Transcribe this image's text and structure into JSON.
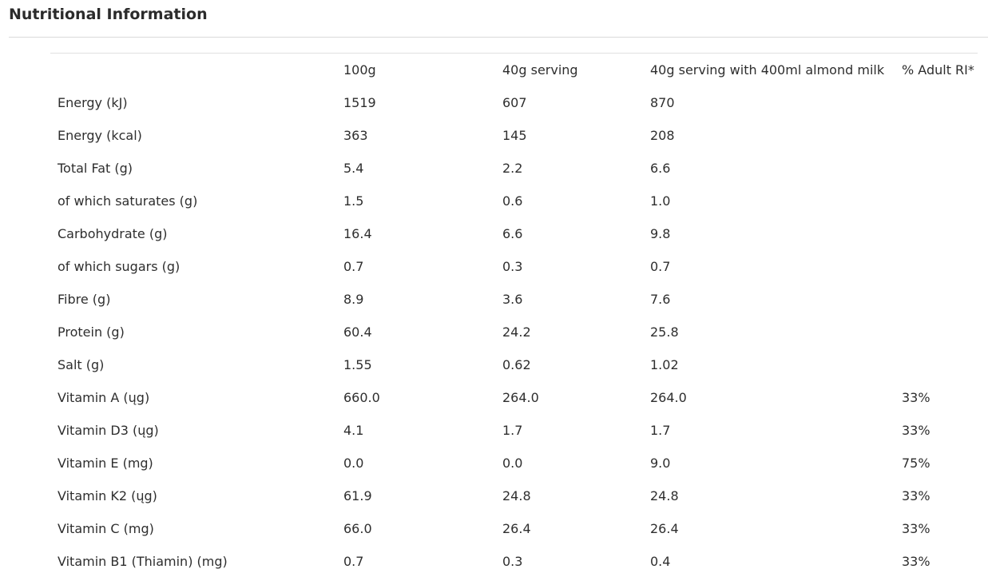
{
  "section": {
    "title": "Nutritional Information"
  },
  "table": {
    "headers": [
      "",
      "100g",
      "40g serving",
      "40g serving with 400ml almond milk",
      "% Adult RI*"
    ],
    "rows": [
      [
        "Energy (kJ)",
        "1519",
        "607",
        "870",
        ""
      ],
      [
        "Energy (kcal)",
        "363",
        "145",
        "208",
        ""
      ],
      [
        "Total Fat (g)",
        "5.4",
        "2.2",
        "6.6",
        ""
      ],
      [
        "of which saturates (g)",
        "1.5",
        "0.6",
        "1.0",
        ""
      ],
      [
        "Carbohydrate (g)",
        "16.4",
        "6.6",
        "9.8",
        ""
      ],
      [
        "of which sugars (g)",
        "0.7",
        "0.3",
        "0.7",
        ""
      ],
      [
        "Fibre (g)",
        "8.9",
        "3.6",
        "7.6",
        ""
      ],
      [
        "Protein (g)",
        "60.4",
        "24.2",
        "25.8",
        ""
      ],
      [
        "Salt (g)",
        "1.55",
        "0.62",
        "1.02",
        ""
      ],
      [
        "Vitamin A (ųg)",
        "660.0",
        "264.0",
        "264.0",
        "33%"
      ],
      [
        "Vitamin D3 (ųg)",
        "4.1",
        "1.7",
        "1.7",
        "33%"
      ],
      [
        "Vitamin E (mg)",
        "0.0",
        "0.0",
        "9.0",
        "75%"
      ],
      [
        "Vitamin K2 (ųg)",
        "61.9",
        "24.8",
        "24.8",
        "33%"
      ],
      [
        "Vitamin C (mg)",
        "66.0",
        "26.4",
        "26.4",
        "33%"
      ],
      [
        "Vitamin B1 (Thiamin) (mg)",
        "0.7",
        "0.3",
        "0.4",
        "33%"
      ]
    ]
  }
}
